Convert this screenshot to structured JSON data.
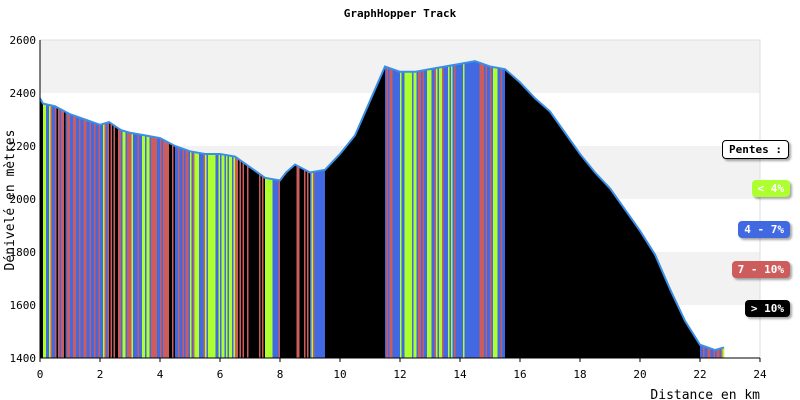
{
  "chart_data": {
    "type": "area",
    "title": "GraphHopper Track",
    "xlabel": "Distance en km",
    "ylabel": "Dénivelé en mètres",
    "xlim": [
      0,
      24
    ],
    "ylim": [
      1400,
      2600
    ],
    "x_ticks": [
      0,
      2,
      4,
      6,
      8,
      10,
      12,
      14,
      16,
      18,
      20,
      22,
      24
    ],
    "y_ticks": [
      1400,
      1600,
      1800,
      2000,
      2200,
      2400,
      2600
    ],
    "grid": "horizontal alternating bands",
    "legend_title": "Pentes :",
    "legend_placement": "right",
    "slope_classes": [
      {
        "label": "< 4%",
        "color": "#adff2f",
        "text_color": "#ffffff"
      },
      {
        "label": "4 - 7%",
        "color": "#4169e1",
        "text_color": "#ffffff"
      },
      {
        "label": "7 - 10%",
        "color": "#cd5c5c",
        "text_color": "#ffffff"
      },
      {
        "label": "> 10%",
        "color": "#000000",
        "text_color": "#ffffff"
      }
    ],
    "line_color": "#3a8ee6",
    "profile": [
      {
        "x": 0.0,
        "y": 2380
      },
      {
        "x": 0.1,
        "y": 2360
      },
      {
        "x": 0.5,
        "y": 2350
      },
      {
        "x": 1.0,
        "y": 2320
      },
      {
        "x": 1.5,
        "y": 2300
      },
      {
        "x": 2.0,
        "y": 2280
      },
      {
        "x": 2.3,
        "y": 2290
      },
      {
        "x": 2.7,
        "y": 2260
      },
      {
        "x": 3.0,
        "y": 2250
      },
      {
        "x": 3.5,
        "y": 2240
      },
      {
        "x": 4.0,
        "y": 2230
      },
      {
        "x": 4.5,
        "y": 2200
      },
      {
        "x": 5.0,
        "y": 2180
      },
      {
        "x": 5.5,
        "y": 2170
      },
      {
        "x": 6.0,
        "y": 2170
      },
      {
        "x": 6.5,
        "y": 2160
      },
      {
        "x": 7.0,
        "y": 2120
      },
      {
        "x": 7.5,
        "y": 2080
      },
      {
        "x": 8.0,
        "y": 2070
      },
      {
        "x": 8.2,
        "y": 2100
      },
      {
        "x": 8.5,
        "y": 2130
      },
      {
        "x": 9.0,
        "y": 2100
      },
      {
        "x": 9.5,
        "y": 2110
      },
      {
        "x": 10.0,
        "y": 2170
      },
      {
        "x": 10.5,
        "y": 2240
      },
      {
        "x": 11.0,
        "y": 2370
      },
      {
        "x": 11.5,
        "y": 2500
      },
      {
        "x": 12.0,
        "y": 2480
      },
      {
        "x": 12.5,
        "y": 2480
      },
      {
        "x": 13.0,
        "y": 2490
      },
      {
        "x": 13.5,
        "y": 2500
      },
      {
        "x": 14.0,
        "y": 2510
      },
      {
        "x": 14.5,
        "y": 2520
      },
      {
        "x": 15.0,
        "y": 2500
      },
      {
        "x": 15.5,
        "y": 2490
      },
      {
        "x": 16.0,
        "y": 2440
      },
      {
        "x": 16.5,
        "y": 2380
      },
      {
        "x": 17.0,
        "y": 2330
      },
      {
        "x": 17.5,
        "y": 2250
      },
      {
        "x": 18.0,
        "y": 2170
      },
      {
        "x": 18.5,
        "y": 2100
      },
      {
        "x": 19.0,
        "y": 2040
      },
      {
        "x": 19.5,
        "y": 1960
      },
      {
        "x": 20.0,
        "y": 1880
      },
      {
        "x": 20.5,
        "y": 1790
      },
      {
        "x": 21.0,
        "y": 1660
      },
      {
        "x": 21.5,
        "y": 1540
      },
      {
        "x": 22.0,
        "y": 1450
      },
      {
        "x": 22.5,
        "y": 1430
      },
      {
        "x": 22.8,
        "y": 1440
      }
    ]
  }
}
